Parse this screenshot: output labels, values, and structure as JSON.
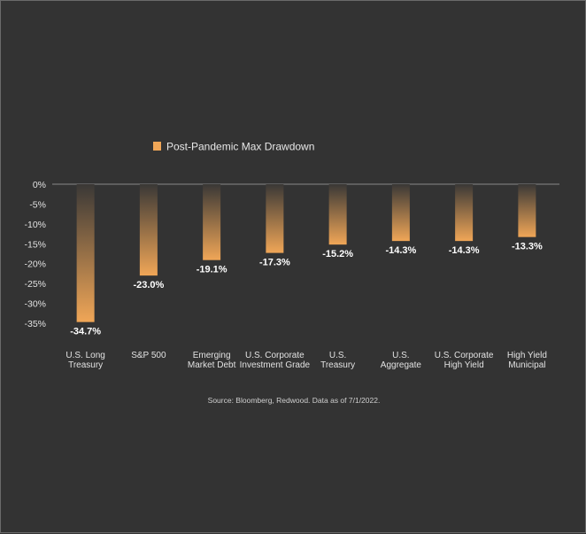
{
  "chart_data": {
    "type": "bar",
    "title": "",
    "xlabel": "",
    "ylabel": "",
    "ylim": [
      -35,
      0
    ],
    "yticks": [
      0,
      -5,
      -10,
      -15,
      -20,
      -25,
      -30,
      -35
    ],
    "ytick_labels": [
      "0%",
      "-5%",
      "-10%",
      "-15%",
      "-20%",
      "-25%",
      "-30%",
      "-35%"
    ],
    "categories": [
      [
        "U.S. Long",
        "Treasury"
      ],
      [
        "S&P 500"
      ],
      [
        "Emerging",
        "Market Debt"
      ],
      [
        "U.S. Corporate",
        "Investment Grade"
      ],
      [
        "U.S.",
        "Treasury"
      ],
      [
        "U.S.",
        "Aggregate"
      ],
      [
        "U.S. Corporate",
        "High Yield"
      ],
      [
        "High Yield",
        "Municipal"
      ]
    ],
    "series": [
      {
        "name": "Post-Pandemic Max Drawdown",
        "values": [
          -34.7,
          -23.0,
          -19.1,
          -17.3,
          -15.2,
          -14.3,
          -14.3,
          -13.3
        ],
        "labels": [
          "-34.7%",
          "-23.0%",
          "-19.1%",
          "-17.3%",
          "-15.2%",
          "-14.3%",
          "-14.3%",
          "-13.3%"
        ]
      }
    ],
    "legend_position": "top-left",
    "grid": false,
    "colors": {
      "bar": "#f0a657",
      "bar_fade": "#3a3836",
      "background": "#333333"
    },
    "source": "Source: Bloomberg, Redwood. Data as of 7/1/2022."
  }
}
